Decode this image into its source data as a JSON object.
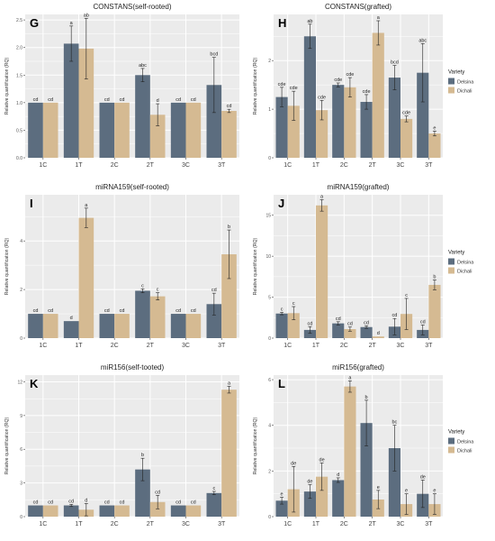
{
  "colors": {
    "Delsina": "#5c6d7f",
    "Dichali": "#d5ba92",
    "panel_bg": "#ebebeb",
    "grid": "#ffffff"
  },
  "legend": {
    "title": "Variety",
    "items": [
      "Delsina",
      "Dichali"
    ]
  },
  "chart_data": [
    {
      "type": "bar",
      "letter": "G",
      "title": "CONSTANS(self-rooted)",
      "ylabel": "Relative quantification (RQ)",
      "categories": [
        "1C",
        "1T",
        "2C",
        "2T",
        "3C",
        "3T"
      ],
      "ylim": [
        0,
        2.6
      ],
      "yticks": [
        0.0,
        0.5,
        1.0,
        1.5,
        2.0,
        2.5
      ],
      "ytick_labels": [
        "0.0",
        "0.5",
        "1.0",
        "1.5",
        "2.0",
        "2.5"
      ],
      "legend": false,
      "series": [
        {
          "name": "Delsina",
          "values": [
            1.0,
            2.07,
            1.0,
            1.5,
            1.0,
            1.32
          ],
          "err": [
            0,
            0.32,
            0,
            0.12,
            0,
            0.5
          ],
          "labels": [
            "cd",
            "a",
            "cd",
            "abc",
            "cd",
            "bcd"
          ]
        },
        {
          "name": "Dichali",
          "values": [
            1.0,
            1.98,
            1.0,
            0.78,
            1.0,
            0.85
          ],
          "err": [
            0,
            0.55,
            0,
            0.2,
            0,
            0.03
          ],
          "labels": [
            "cd",
            "ab",
            "cd",
            "d",
            "cd",
            "cd"
          ]
        }
      ]
    },
    {
      "type": "bar",
      "letter": "H",
      "title": "CONSTANS(grafted)",
      "ylabel": "Relative quantification (RQ)",
      "categories": [
        "1C",
        "1T",
        "2C",
        "2T",
        "3C",
        "3T"
      ],
      "ylim": [
        0,
        2.95
      ],
      "yticks": [
        0,
        1,
        2
      ],
      "ytick_labels": [
        "0",
        "1",
        "2"
      ],
      "legend": true,
      "series": [
        {
          "name": "Delsina",
          "values": [
            1.25,
            2.5,
            1.5,
            1.15,
            1.65,
            1.75
          ],
          "err": [
            0.2,
            0.25,
            0.04,
            0.15,
            0.25,
            0.6
          ],
          "labels": [
            "cde",
            "ab",
            "cde",
            "cde",
            "bcd",
            "abc"
          ]
        },
        {
          "name": "Dichali",
          "values": [
            1.07,
            0.98,
            1.45,
            2.57,
            0.8,
            0.5
          ],
          "err": [
            0.3,
            0.2,
            0.2,
            0.25,
            0.06,
            0.05
          ],
          "labels": [
            "cde",
            "cde",
            "cde",
            "a",
            "cde",
            "e"
          ]
        }
      ]
    },
    {
      "type": "bar",
      "letter": "I",
      "title": "miRNA159(self-rooted)",
      "ylabel": "Relative quantification (RQ)",
      "categories": [
        "1C",
        "1T",
        "2C",
        "2T",
        "3C",
        "3T"
      ],
      "ylim": [
        0,
        5.9
      ],
      "yticks": [
        0,
        2,
        4
      ],
      "ytick_labels": [
        "0",
        "2",
        "4"
      ],
      "legend": false,
      "series": [
        {
          "name": "Delsina",
          "values": [
            1.0,
            0.7,
            1.0,
            1.95,
            1.0,
            1.4
          ],
          "err": [
            0,
            0,
            0,
            0.08,
            0,
            0.45
          ],
          "labels": [
            "cd",
            "d",
            "cd",
            "c",
            "cd",
            "cd"
          ]
        },
        {
          "name": "Dichali",
          "values": [
            1.0,
            4.95,
            1.0,
            1.72,
            1.0,
            3.45
          ],
          "err": [
            0,
            0.4,
            0,
            0.15,
            0,
            1.0
          ],
          "labels": [
            "cd",
            "a",
            "cd",
            "c",
            "cd",
            "b"
          ]
        }
      ]
    },
    {
      "type": "bar",
      "letter": "J",
      "title": "miRNA159(grafted)",
      "ylabel": "Relative quantification (RQ)",
      "categories": [
        "1C",
        "1T",
        "2C",
        "2T",
        "3C",
        "3T"
      ],
      "ylim": [
        0,
        17.5
      ],
      "yticks": [
        0,
        5,
        10,
        15
      ],
      "ytick_labels": [
        "0",
        "5",
        "10",
        "15"
      ],
      "legend": true,
      "series": [
        {
          "name": "Delsina",
          "values": [
            3.0,
            1.0,
            1.8,
            1.35,
            1.4,
            1.0
          ],
          "err": [
            0.15,
            0.4,
            0.2,
            0.15,
            1.0,
            0.6
          ],
          "labels": [
            "c",
            "cd",
            "cd",
            "cd",
            "cd",
            "cd"
          ]
        },
        {
          "name": "Dichali",
          "values": [
            3.05,
            16.2,
            1.1,
            0.2,
            2.95,
            6.5
          ],
          "err": [
            0.8,
            0.7,
            0.25,
            0,
            1.9,
            0.6
          ],
          "labels": [
            "c",
            "a",
            "cd",
            "d",
            "c",
            "b"
          ]
        }
      ]
    },
    {
      "type": "bar",
      "letter": "K",
      "title": "miR156(self-tooted)",
      "ylabel": "Relative quantification (RQ)",
      "categories": [
        "1C",
        "1T",
        "2C",
        "2T",
        "3C",
        "3T"
      ],
      "ylim": [
        0,
        12.6
      ],
      "yticks": [
        0,
        3,
        6,
        9,
        12
      ],
      "ytick_labels": [
        "0",
        "3",
        "6",
        "9",
        "12"
      ],
      "legend": false,
      "series": [
        {
          "name": "Delsina",
          "values": [
            1.0,
            1.0,
            1.0,
            4.2,
            1.0,
            2.1
          ],
          "err": [
            0,
            0.1,
            0,
            1.0,
            0,
            0.15
          ],
          "labels": [
            "cd",
            "cd",
            "cd",
            "b",
            "cd",
            "c"
          ]
        },
        {
          "name": "Dichali",
          "values": [
            1.0,
            0.62,
            1.0,
            1.3,
            1.0,
            11.3
          ],
          "err": [
            0,
            0.55,
            0,
            0.6,
            0,
            0.3
          ],
          "labels": [
            "cd",
            "d",
            "cd",
            "cd",
            "cd",
            "a"
          ]
        }
      ]
    },
    {
      "type": "bar",
      "letter": "L",
      "title": "miR156(grafted)",
      "ylabel": "Relative quantification (RQ)",
      "categories": [
        "1C",
        "1T",
        "2C",
        "2T",
        "3C",
        "3T"
      ],
      "ylim": [
        0,
        6.2
      ],
      "yticks": [
        0,
        2,
        4,
        6
      ],
      "ytick_labels": [
        "0",
        "2",
        "4",
        "6"
      ],
      "legend": true,
      "series": [
        {
          "name": "Delsina",
          "values": [
            0.7,
            1.1,
            1.6,
            4.1,
            3.0,
            1.0
          ],
          "err": [
            0.15,
            0.3,
            0.1,
            1.0,
            1.0,
            0.6
          ],
          "labels": [
            "e",
            "de",
            "d",
            "b",
            "bc",
            "de"
          ]
        },
        {
          "name": "Dichali",
          "values": [
            1.2,
            1.75,
            5.7,
            0.75,
            0.55,
            0.55
          ],
          "err": [
            1.0,
            0.6,
            0.25,
            0.4,
            0.45,
            0.45
          ],
          "labels": [
            "de",
            "de",
            "a",
            "e",
            "e",
            "e"
          ]
        }
      ]
    }
  ]
}
